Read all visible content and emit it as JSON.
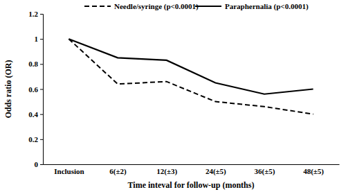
{
  "chart_data": {
    "type": "line",
    "x_label": "Time inteval for follow-up (months)",
    "y_label": "Odds ratio (OR)",
    "categories": [
      "Inclusion",
      "6(±2)",
      "12(±3)",
      "24(±5)",
      "36(±5)",
      "48(±5)"
    ],
    "series": [
      {
        "name": "Needle/syringe (p<0.0001)",
        "color": "#000000",
        "line_style": "dashed",
        "values": [
          1,
          0.64,
          0.66,
          0.5,
          0.46,
          0.4
        ]
      },
      {
        "name": "Paraphernalia (p<0.0001)",
        "color": "#000000",
        "line_style": "solid",
        "values": [
          1,
          0.85,
          0.83,
          0.65,
          0.56,
          0.6
        ]
      }
    ],
    "ylim": [
      0,
      1.2
    ],
    "yticks": [
      0,
      0.2,
      0.4,
      0.6,
      0.8,
      1,
      1.2
    ],
    "grid": false,
    "legend": "top"
  }
}
